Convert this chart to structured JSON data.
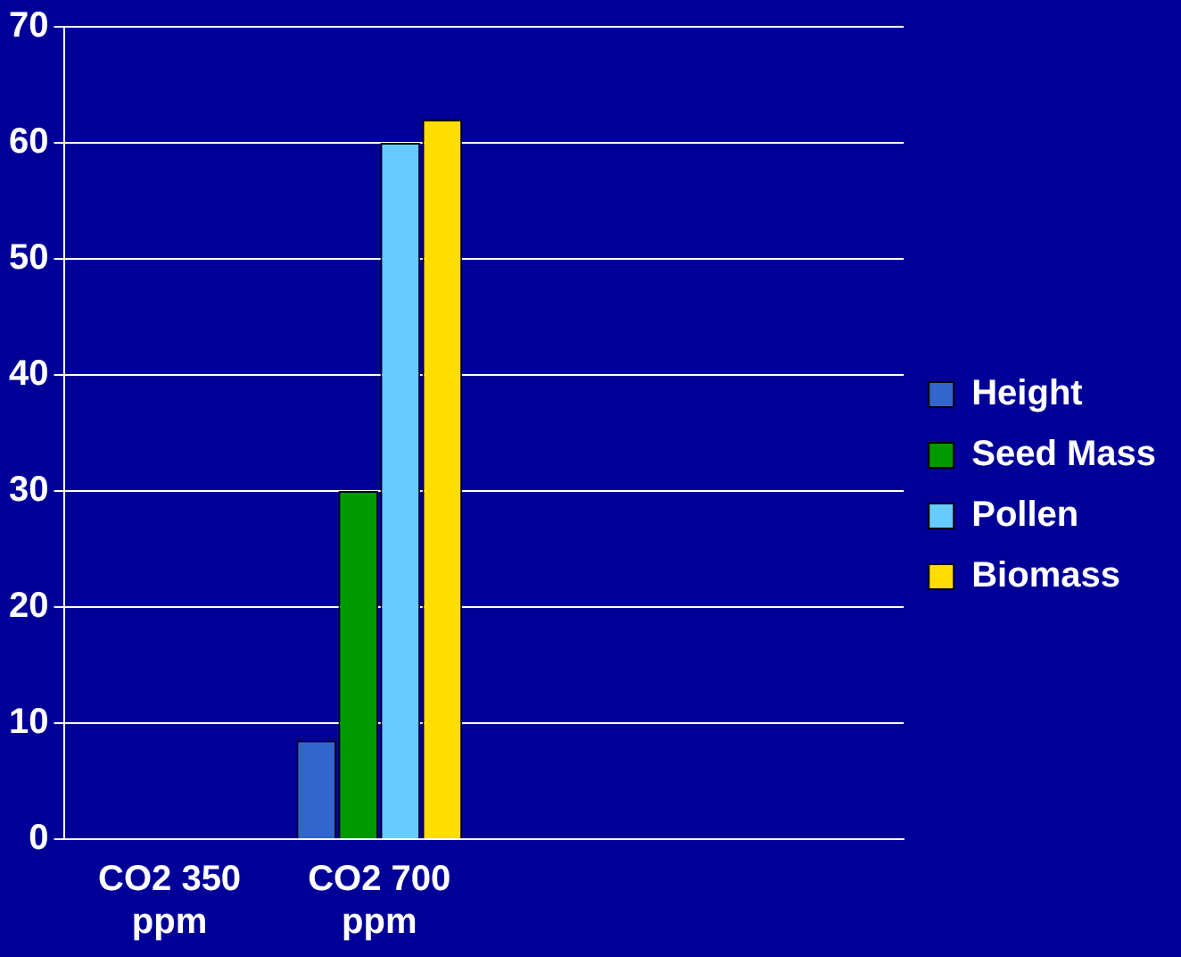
{
  "chart_data": {
    "type": "bar",
    "categories": [
      "CO2 350 ppm",
      "CO2 700 ppm",
      null,
      null
    ],
    "series": [
      {
        "name": "Height",
        "color": "#3366cc",
        "values": [
          null,
          8.5,
          null,
          null
        ]
      },
      {
        "name": "Seed Mass",
        "color": "#009900",
        "values": [
          null,
          30,
          null,
          null
        ]
      },
      {
        "name": "Pollen",
        "color": "#66ccff",
        "values": [
          null,
          60,
          null,
          null
        ]
      },
      {
        "name": "Biomass",
        "color": "#ffdd00",
        "values": [
          null,
          62,
          null,
          null
        ]
      }
    ],
    "ylim": [
      0,
      70
    ],
    "yticks": [
      0,
      10,
      20,
      30,
      40,
      50,
      60,
      70
    ],
    "grid": "y",
    "legend": "right"
  }
}
